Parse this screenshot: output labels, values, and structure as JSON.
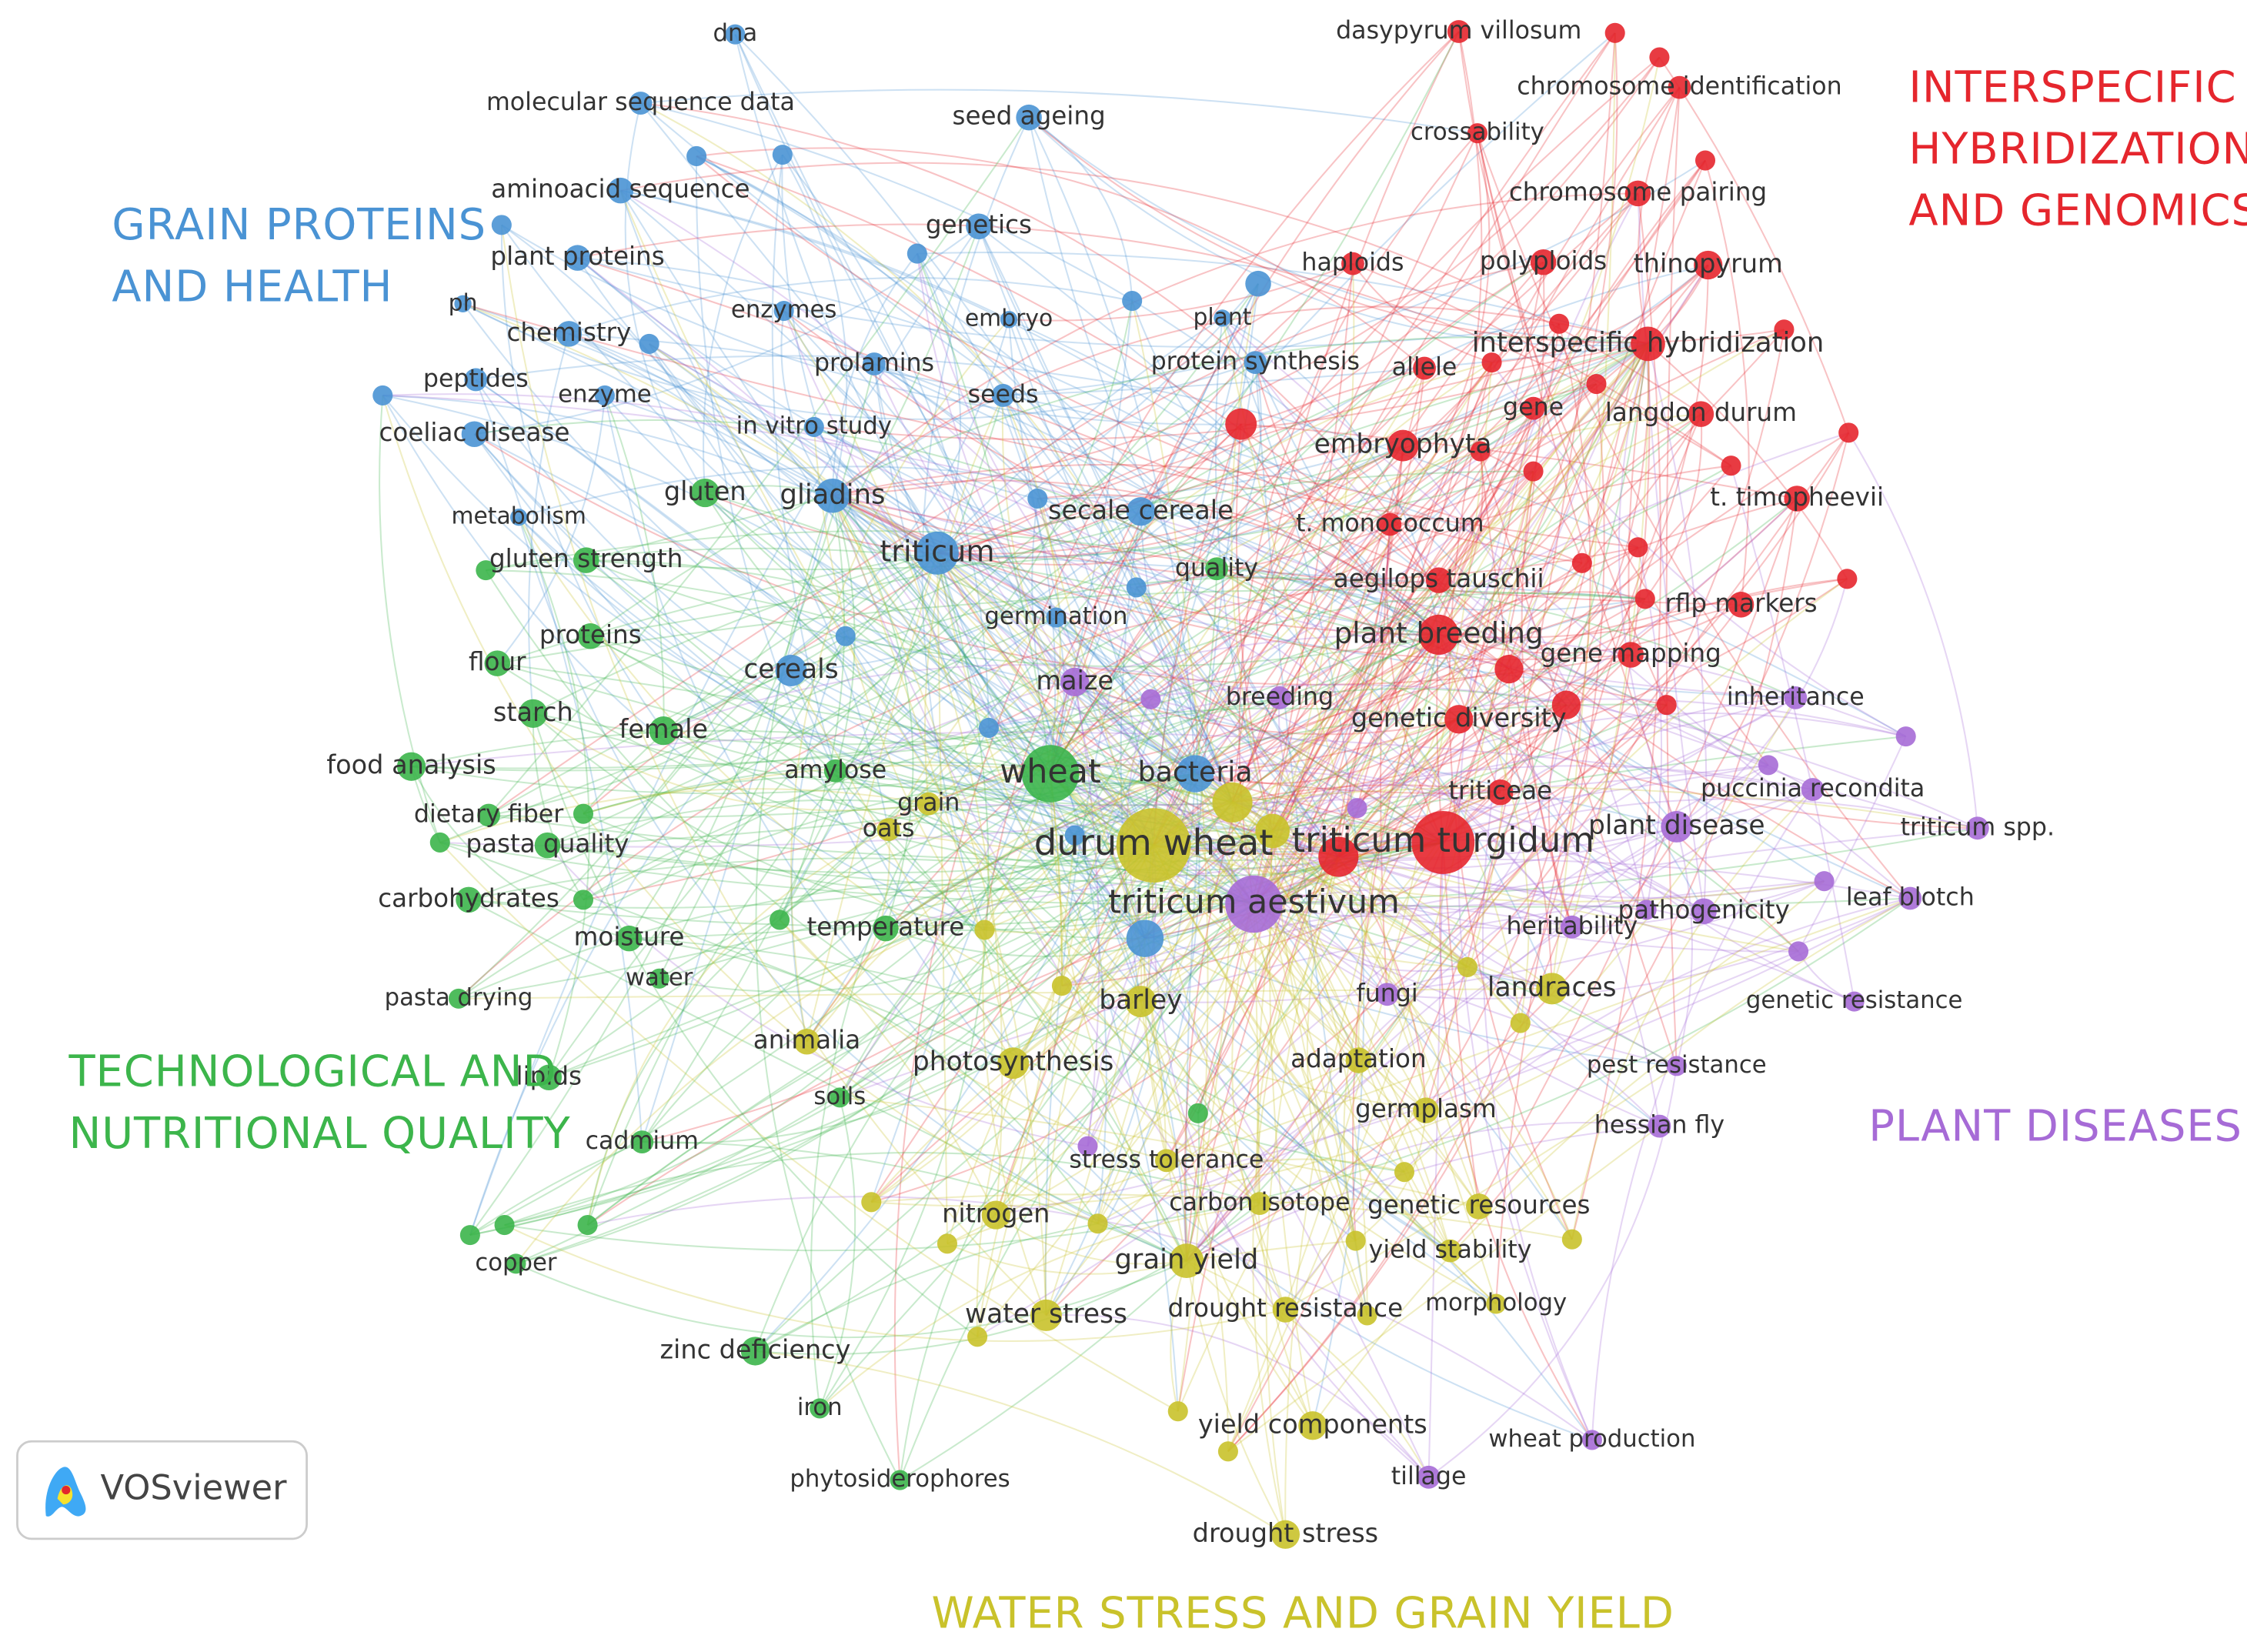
{
  "clusters": [
    {
      "name": [
        "GRAIN PROTEINS",
        "AND HEALTH"
      ],
      "color": "#4a93d4",
      "nodes": [
        {
          "label": "dna"
        },
        {
          "label": "molecular sequence data"
        },
        {
          "label": "seed ageing"
        },
        {
          "label": "aminoacid sequence"
        },
        {
          "label": "genetics"
        },
        {
          "label": "plant proteins"
        },
        {
          "label": "ph"
        },
        {
          "label": "chemistry"
        },
        {
          "label": "enzymes"
        },
        {
          "label": "embryo"
        },
        {
          "label": "prolamins"
        },
        {
          "label": "peptides"
        },
        {
          "label": "enzyme"
        },
        {
          "label": "seeds"
        },
        {
          "label": "coeliac disease"
        },
        {
          "label": "in vitro study"
        },
        {
          "label": "metabolism"
        },
        {
          "label": "gliadins"
        },
        {
          "label": "secale cereale"
        },
        {
          "label": "triticum"
        },
        {
          "label": "cereals"
        },
        {
          "label": "bacteria"
        },
        {
          "label": "plant"
        },
        {
          "label": "protein synthesis"
        },
        {
          "label": "germination"
        }
      ]
    },
    {
      "name": [
        "INTERSPECIFIC",
        "HYBRIDIZATION",
        "AND GENOMICS"
      ],
      "color": "#e5262d",
      "nodes": [
        {
          "label": "dasypyrum villosum"
        },
        {
          "label": "chromosome identification"
        },
        {
          "label": "crossability"
        },
        {
          "label": "chromosome pairing"
        },
        {
          "label": "thinopyrum"
        },
        {
          "label": "haploids"
        },
        {
          "label": "polyploids"
        },
        {
          "label": "interspecific hybridization"
        },
        {
          "label": "allele"
        },
        {
          "label": "gene"
        },
        {
          "label": "langdon durum"
        },
        {
          "label": "embryophyta"
        },
        {
          "label": "t. timopheevii"
        },
        {
          "label": "t. monococcum"
        },
        {
          "label": "aegilops tauschii"
        },
        {
          "label": "rflp markers"
        },
        {
          "label": "plant breeding"
        },
        {
          "label": "gene mapping"
        },
        {
          "label": "genetic diversity"
        },
        {
          "label": "triticeae"
        },
        {
          "label": "triticum turgidum"
        }
      ]
    },
    {
      "name": [
        "TECHNOLOGICAL AND",
        "NUTRITIONAL QUALITY"
      ],
      "color": "#3cb54b",
      "nodes": [
        {
          "label": "gluten"
        },
        {
          "label": "gluten strength"
        },
        {
          "label": "proteins"
        },
        {
          "label": "flour"
        },
        {
          "label": "starch"
        },
        {
          "label": "food analysis"
        },
        {
          "label": "female"
        },
        {
          "label": "dietary fiber"
        },
        {
          "label": "amylose"
        },
        {
          "label": "pasta quality"
        },
        {
          "label": "carbohydrates"
        },
        {
          "label": "moisture"
        },
        {
          "label": "temperature"
        },
        {
          "label": "water"
        },
        {
          "label": "pasta drying"
        },
        {
          "label": "lipids"
        },
        {
          "label": "cadmium"
        },
        {
          "label": "copper"
        },
        {
          "label": "zinc deficiency"
        },
        {
          "label": "iron"
        },
        {
          "label": "phytosiderophores"
        },
        {
          "label": "wheat"
        },
        {
          "label": "soils"
        },
        {
          "label": "quality"
        }
      ]
    },
    {
      "name": [
        "PLANT DISEASES"
      ],
      "color": "#a66bd6",
      "nodes": [
        {
          "label": "maize"
        },
        {
          "label": "breeding"
        },
        {
          "label": "inheritance"
        },
        {
          "label": "puccinia recondita"
        },
        {
          "label": "plant disease"
        },
        {
          "label": "triticum spp."
        },
        {
          "label": "leaf blotch"
        },
        {
          "label": "pathogenicity"
        },
        {
          "label": "heritability"
        },
        {
          "label": "triticum aestivum"
        },
        {
          "label": "fungi"
        },
        {
          "label": "genetic resistance"
        },
        {
          "label": "pest resistance"
        },
        {
          "label": "hessian fly"
        },
        {
          "label": "wheat production"
        },
        {
          "label": "tillage"
        }
      ]
    },
    {
      "name": [
        "WATER STRESS AND GRAIN YIELD"
      ],
      "color": "#c9c22b",
      "nodes": [
        {
          "label": "durum wheat"
        },
        {
          "label": "barley"
        },
        {
          "label": "oats"
        },
        {
          "label": "grain"
        },
        {
          "label": "animalia"
        },
        {
          "label": "photosynthesis"
        },
        {
          "label": "adaptation"
        },
        {
          "label": "germplasm"
        },
        {
          "label": "stress tolerance"
        },
        {
          "label": "carbon isotope"
        },
        {
          "label": "genetic resources"
        },
        {
          "label": "nitrogen"
        },
        {
          "label": "yield stability"
        },
        {
          "label": "grain yield"
        },
        {
          "label": "water stress"
        },
        {
          "label": "drought resistance"
        },
        {
          "label": "morphology"
        },
        {
          "label": "landraces"
        },
        {
          "label": "yield components"
        },
        {
          "label": "drought stress"
        }
      ]
    }
  ],
  "logo": "VOSviewer"
}
